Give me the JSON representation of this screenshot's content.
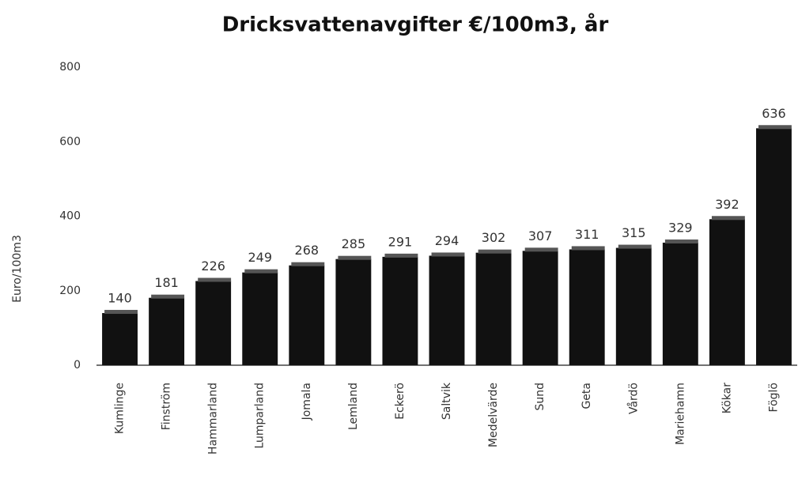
{
  "chart_data": {
    "type": "bar",
    "title": "Dricksvattenavgifter €/100m3, år",
    "y_label": "Euro/100m3",
    "categories": [
      "Kumlinge",
      "Finström",
      "Hammarland",
      "Lumparland",
      "Jomala",
      "Lemland",
      "Eckerö",
      "Saltvik",
      "Medelvärde",
      "Sund",
      "Geta",
      "Vårdö",
      "Mariehamn",
      "Kökar",
      "Föglö"
    ],
    "values": [
      140,
      181,
      226,
      249,
      268,
      285,
      291,
      294,
      302,
      307,
      311,
      315,
      329,
      392,
      636
    ],
    "color": "#111111",
    "ylim": [
      0,
      800
    ],
    "yticks": [
      0,
      200,
      400,
      600,
      800
    ],
    "grid": false
  }
}
